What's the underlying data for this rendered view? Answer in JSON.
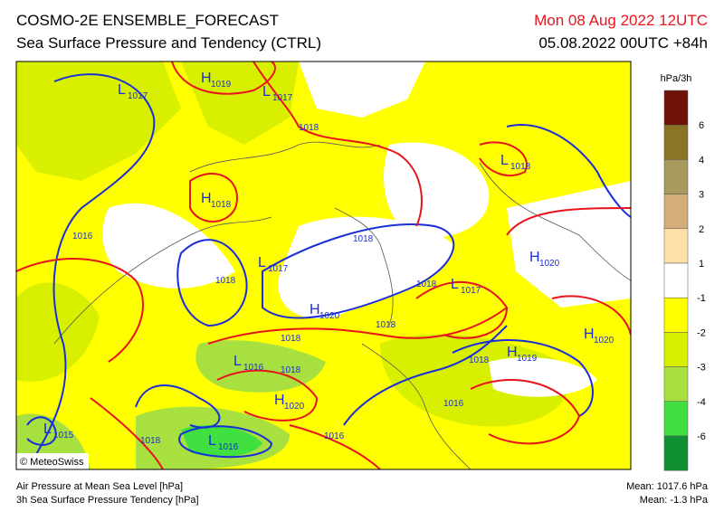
{
  "header": {
    "title": "COSMO-2E ENSEMBLE_FORECAST",
    "subtitle": "Sea Surface Pressure and Tendency (CTRL)",
    "valid_time": "Mon 08 Aug 2022 12UTC",
    "run_time": "05.08.2022 00UTC +84h"
  },
  "map": {
    "pressure_centers": [
      {
        "kind": "L",
        "value": "1017"
      },
      {
        "kind": "H",
        "value": "1019"
      },
      {
        "kind": "L",
        "value": "1017"
      },
      {
        "kind": "L",
        "value": "1018"
      },
      {
        "kind": "H",
        "value": "1018"
      },
      {
        "kind": "L",
        "value": "1017"
      },
      {
        "kind": "H",
        "value": "1020"
      },
      {
        "kind": "L",
        "value": "1017"
      },
      {
        "kind": "H",
        "value": "1020"
      },
      {
        "kind": "H",
        "value": "1020"
      },
      {
        "kind": "L",
        "value": "1016"
      },
      {
        "kind": "H",
        "value": "1019"
      },
      {
        "kind": "H",
        "value": "1020"
      },
      {
        "kind": "L",
        "value": "1015"
      },
      {
        "kind": "L",
        "value": "1016"
      }
    ],
    "isobar_labels": [
      "1018",
      "1016",
      "1018",
      "1018",
      "1018",
      "1018",
      "1018",
      "1018",
      "1018",
      "1016",
      "1018",
      "1016"
    ],
    "credit": "© MeteoSwiss"
  },
  "legend": {
    "title": "hPa/3h",
    "colors": [
      "#6e1208",
      "#8a7425",
      "#a89a5c",
      "#d4ae7a",
      "#ffe0a8",
      "#ffffff",
      "#ffff00",
      "#d8f000",
      "#a8e040",
      "#40e040",
      "#109030"
    ],
    "labels": [
      6,
      4,
      3,
      2,
      1,
      -1,
      -2,
      -3,
      -4,
      -6
    ]
  },
  "footer": {
    "line1": "Air Pressure at Mean Sea Level [hPa]",
    "line2": "3h Sea Surface Pressure Tendency [hPa]",
    "mean_pressure": "Mean: 1017.6 hPa",
    "mean_tendency": "Mean: -1.3 hPa"
  }
}
